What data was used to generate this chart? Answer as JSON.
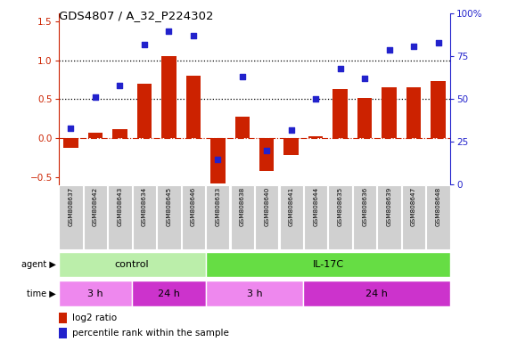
{
  "title": "GDS4807 / A_32_P224302",
  "samples": [
    "GSM808637",
    "GSM808642",
    "GSM808643",
    "GSM808634",
    "GSM808645",
    "GSM808646",
    "GSM808633",
    "GSM808638",
    "GSM808640",
    "GSM808641",
    "GSM808644",
    "GSM808635",
    "GSM808636",
    "GSM808639",
    "GSM808647",
    "GSM808648"
  ],
  "log2_ratio": [
    -0.13,
    0.07,
    0.12,
    0.7,
    1.05,
    0.8,
    -0.58,
    0.28,
    -0.42,
    -0.22,
    0.02,
    0.63,
    0.52,
    0.65,
    0.65,
    0.73
  ],
  "percentile_pct": [
    33,
    51,
    58,
    82,
    90,
    87,
    15,
    63,
    20,
    32,
    50,
    68,
    62,
    79,
    81,
    83
  ],
  "bar_color": "#cc2200",
  "dot_color": "#2222cc",
  "agent_groups": [
    {
      "label": "control",
      "start": 0,
      "end": 6,
      "color": "#bbeeaa"
    },
    {
      "label": "IL-17C",
      "start": 6,
      "end": 16,
      "color": "#66dd44"
    }
  ],
  "time_groups": [
    {
      "label": "3 h",
      "start": 0,
      "end": 3,
      "color": "#ee88ee"
    },
    {
      "label": "24 h",
      "start": 3,
      "end": 6,
      "color": "#cc33cc"
    },
    {
      "label": "3 h",
      "start": 6,
      "end": 10,
      "color": "#ee88ee"
    },
    {
      "label": "24 h",
      "start": 10,
      "end": 16,
      "color": "#cc33cc"
    }
  ],
  "ylim_left": [
    -0.6,
    1.6
  ],
  "ylim_right": [
    0,
    100
  ],
  "yticks_left": [
    -0.5,
    0.0,
    0.5,
    1.0,
    1.5
  ],
  "yticks_right": [
    0,
    25,
    50,
    75,
    100
  ],
  "hlines": [
    0.5,
    1.0
  ],
  "legend": [
    {
      "color": "#cc2200",
      "label": "log2 ratio",
      "marker": "s"
    },
    {
      "color": "#2222cc",
      "label": "percentile rank within the sample",
      "marker": "s"
    }
  ]
}
